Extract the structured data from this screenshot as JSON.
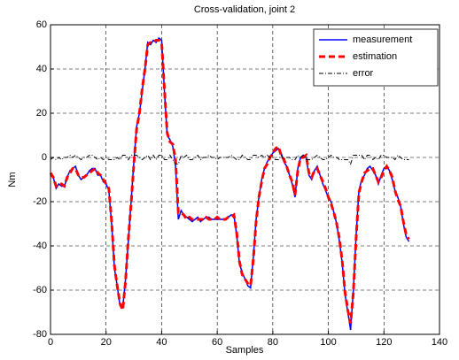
{
  "chart_data": {
    "type": "line",
    "title": "Cross-validation, joint 2",
    "x_label": "Samples",
    "y_label": "Nm",
    "x": [
      0,
      1,
      2,
      3,
      4,
      5,
      6,
      7,
      8,
      9,
      10,
      11,
      12,
      13,
      14,
      15,
      16,
      17,
      18,
      19,
      20,
      21,
      22,
      23,
      24,
      25,
      26,
      27,
      28,
      29,
      30,
      31,
      32,
      33,
      34,
      35,
      36,
      37,
      38,
      39,
      40,
      41,
      42,
      43,
      44,
      45,
      46,
      47,
      48,
      49,
      50,
      51,
      52,
      53,
      54,
      55,
      56,
      57,
      58,
      59,
      60,
      61,
      62,
      63,
      64,
      65,
      66,
      67,
      68,
      69,
      70,
      71,
      72,
      73,
      74,
      75,
      76,
      77,
      78,
      79,
      80,
      81,
      82,
      83,
      84,
      85,
      86,
      87,
      88,
      89,
      90,
      91,
      92,
      93,
      94,
      95,
      96,
      97,
      98,
      99,
      100,
      101,
      102,
      103,
      104,
      105,
      106,
      107,
      108,
      109,
      110,
      111,
      112,
      113,
      114,
      115,
      116,
      117,
      118,
      119,
      120,
      121,
      122,
      123,
      124,
      125,
      126,
      127,
      128,
      129
    ],
    "series": [
      {
        "name": "measurement",
        "color": "#0000ff",
        "linestyle": "solid",
        "values": [
          -8,
          -9,
          -14,
          -12,
          -13,
          -13,
          -9,
          -6,
          -5,
          -4,
          -8,
          -10,
          -9,
          -8,
          -6,
          -5,
          -5,
          -8,
          -8,
          -11,
          -12,
          -15,
          -30,
          -50,
          -58,
          -67,
          -68,
          -55,
          -38,
          -20,
          -2,
          14,
          20,
          30,
          40,
          52,
          51,
          53,
          52,
          54,
          53,
          30,
          10,
          8,
          5,
          -4,
          -28,
          -24,
          -26,
          -27,
          -28,
          -29,
          -28,
          -27,
          -29,
          -28,
          -27,
          -27,
          -28,
          -28,
          -28,
          -28,
          -28,
          -28,
          -27,
          -26,
          -26,
          -35,
          -48,
          -52,
          -55,
          -58,
          -59,
          -45,
          -28,
          -18,
          -10,
          -5,
          -2,
          0,
          2,
          3,
          4,
          2,
          -2,
          -4,
          -8,
          -12,
          -18,
          -5,
          0,
          1,
          0,
          -8,
          -10,
          -6,
          -4,
          -8,
          -12,
          -15,
          -18,
          -20,
          -25,
          -30,
          -38,
          -48,
          -62,
          -70,
          -78,
          -60,
          -35,
          -15,
          -10,
          -8,
          -5,
          -4,
          -6,
          -8,
          -12,
          -8,
          -5,
          -4,
          -6,
          -10,
          -15,
          -18,
          -22,
          -30,
          -36,
          -38
        ]
      },
      {
        "name": "estimation",
        "color": "#ff0000",
        "linestyle": "dashed",
        "values": [
          -7,
          -9,
          -13,
          -12,
          -12,
          -13,
          -9,
          -7,
          -5,
          -5,
          -8,
          -9,
          -9,
          -8,
          -7,
          -6,
          -5,
          -7,
          -8,
          -10,
          -12,
          -14,
          -29,
          -49,
          -58,
          -66,
          -69,
          -56,
          -37,
          -21,
          -3,
          13,
          20,
          31,
          40,
          51,
          52,
          52,
          53,
          53,
          52,
          31,
          11,
          7,
          6,
          -1,
          -25,
          -25,
          -26,
          -28,
          -27,
          -28,
          -28,
          -28,
          -28,
          -28,
          -27,
          -28,
          -28,
          -28,
          -27,
          -28,
          -28,
          -28,
          -27,
          -27,
          -26,
          -34,
          -47,
          -53,
          -55,
          -57,
          -58,
          -46,
          -29,
          -18,
          -11,
          -5,
          -3,
          0,
          2,
          4,
          5,
          1,
          -1,
          -4,
          -8,
          -11,
          -17,
          -6,
          0,
          0,
          1,
          -7,
          -9,
          -6,
          -5,
          -8,
          -11,
          -14,
          -18,
          -21,
          -25,
          -30,
          -37,
          -47,
          -61,
          -69,
          -75,
          -61,
          -36,
          -16,
          -11,
          -7,
          -6,
          -5,
          -5,
          -8,
          -11,
          -9,
          -6,
          -4,
          -6,
          -9,
          -15,
          -19,
          -22,
          -29,
          -35,
          -37
        ]
      },
      {
        "name": "error",
        "color": "#000000",
        "linestyle": "dashdot",
        "values": [
          -1,
          0,
          -1,
          0,
          -1,
          0,
          0,
          1,
          0,
          1,
          0,
          -1,
          0,
          0,
          1,
          1,
          0,
          -1,
          0,
          -1,
          0,
          -1,
          -1,
          -1,
          0,
          -1,
          1,
          1,
          -1,
          1,
          1,
          1,
          0,
          -1,
          0,
          1,
          -1,
          1,
          -1,
          1,
          1,
          -1,
          -1,
          1,
          -1,
          -3,
          -3,
          1,
          0,
          1,
          -1,
          -1,
          0,
          1,
          -1,
          0,
          0,
          1,
          0,
          0,
          -1,
          0,
          0,
          0,
          0,
          1,
          0,
          -1,
          -1,
          1,
          0,
          -1,
          -1,
          1,
          1,
          0,
          1,
          0,
          1,
          0,
          0,
          -1,
          -1,
          1,
          -1,
          0,
          0,
          -1,
          -1,
          1,
          0,
          1,
          -1,
          -1,
          -1,
          0,
          1,
          0,
          -1,
          -1,
          0,
          1,
          0,
          0,
          -1,
          -1,
          -1,
          -1,
          -3,
          1,
          1,
          1,
          1,
          -1,
          1,
          1,
          -1,
          0,
          -1,
          1,
          1,
          0,
          0,
          0,
          -1,
          1,
          0,
          -1,
          -1,
          -1
        ]
      }
    ],
    "xlim": [
      0,
      140
    ],
    "xticks": [
      0,
      20,
      40,
      60,
      80,
      100,
      120,
      140
    ],
    "ylim": [
      -80,
      60
    ],
    "yticks": [
      -80,
      -60,
      -40,
      -20,
      0,
      20,
      40,
      60
    ],
    "grid": true,
    "legend": "upper right"
  }
}
